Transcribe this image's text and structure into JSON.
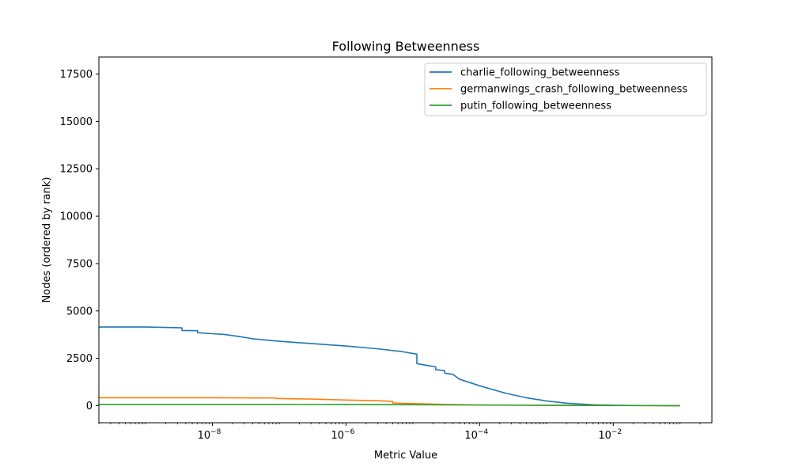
{
  "chart_data": {
    "type": "line",
    "title": "Following Betweenness",
    "xlabel": "Metric Value",
    "ylabel": "Nodes (ordered by rank)",
    "xscale": "log",
    "xlim": [
      2e-10,
      0.3
    ],
    "ylim": [
      -900,
      18400
    ],
    "xticks": [
      {
        "value": 1e-08,
        "base": "10",
        "exp": "−8"
      },
      {
        "value": 1e-06,
        "base": "10",
        "exp": "−6"
      },
      {
        "value": 0.0001,
        "base": "10",
        "exp": "−4"
      },
      {
        "value": 0.01,
        "base": "10",
        "exp": "−2"
      }
    ],
    "yticks": [
      0,
      2500,
      5000,
      7500,
      10000,
      12500,
      15000,
      17500
    ],
    "grid": false,
    "legend": "top-right",
    "series": [
      {
        "name": "charlie_following_betweenness",
        "color": "#1f77b4",
        "points": [
          [
            2e-10,
            4150
          ],
          [
            1e-09,
            4150
          ],
          [
            2e-09,
            4130
          ],
          [
            3.5e-09,
            4110
          ],
          [
            3.5e-09,
            3970
          ],
          [
            6e-09,
            3960
          ],
          [
            6e-09,
            3850
          ],
          [
            1e-08,
            3800
          ],
          [
            1.5e-08,
            3760
          ],
          [
            2.5e-08,
            3650
          ],
          [
            3.5e-08,
            3570
          ],
          [
            4e-08,
            3530
          ],
          [
            1e-07,
            3400
          ],
          [
            3e-07,
            3280
          ],
          [
            1e-06,
            3150
          ],
          [
            3e-06,
            3000
          ],
          [
            7e-06,
            2850
          ],
          [
            1.15e-05,
            2720
          ],
          [
            1.15e-05,
            2220
          ],
          [
            1.8e-05,
            2100
          ],
          [
            2.2e-05,
            2050
          ],
          [
            2.2e-05,
            1900
          ],
          [
            3e-05,
            1850
          ],
          [
            3e-05,
            1720
          ],
          [
            4e-05,
            1650
          ],
          [
            5e-05,
            1400
          ],
          [
            0.0001,
            1050
          ],
          [
            0.00025,
            650
          ],
          [
            0.0005,
            420
          ],
          [
            0.001,
            250
          ],
          [
            0.002,
            130
          ],
          [
            0.005,
            50
          ],
          [
            0.01,
            20
          ],
          [
            0.03,
            8
          ],
          [
            0.1,
            0
          ]
        ]
      },
      {
        "name": "germanwings_crash_following_betweenness",
        "color": "#ff7f0e",
        "points": [
          [
            2e-10,
            420
          ],
          [
            1e-08,
            420
          ],
          [
            5e-08,
            410
          ],
          [
            9e-08,
            405
          ],
          [
            9e-08,
            380
          ],
          [
            3e-07,
            350
          ],
          [
            1e-06,
            300
          ],
          [
            3e-06,
            260
          ],
          [
            5e-06,
            230
          ],
          [
            5e-06,
            140
          ],
          [
            1e-05,
            110
          ],
          [
            3e-05,
            70
          ],
          [
            0.0001,
            40
          ],
          [
            0.001,
            20
          ],
          [
            0.01,
            8
          ],
          [
            0.1,
            0
          ]
        ]
      },
      {
        "name": "putin_following_betweenness",
        "color": "#2ca02c",
        "points": [
          [
            2e-10,
            70
          ],
          [
            1e-07,
            68
          ],
          [
            1e-06,
            62
          ],
          [
            1e-05,
            50
          ],
          [
            0.0001,
            35
          ],
          [
            0.001,
            20
          ],
          [
            0.01,
            8
          ],
          [
            0.1,
            0
          ]
        ]
      }
    ]
  }
}
